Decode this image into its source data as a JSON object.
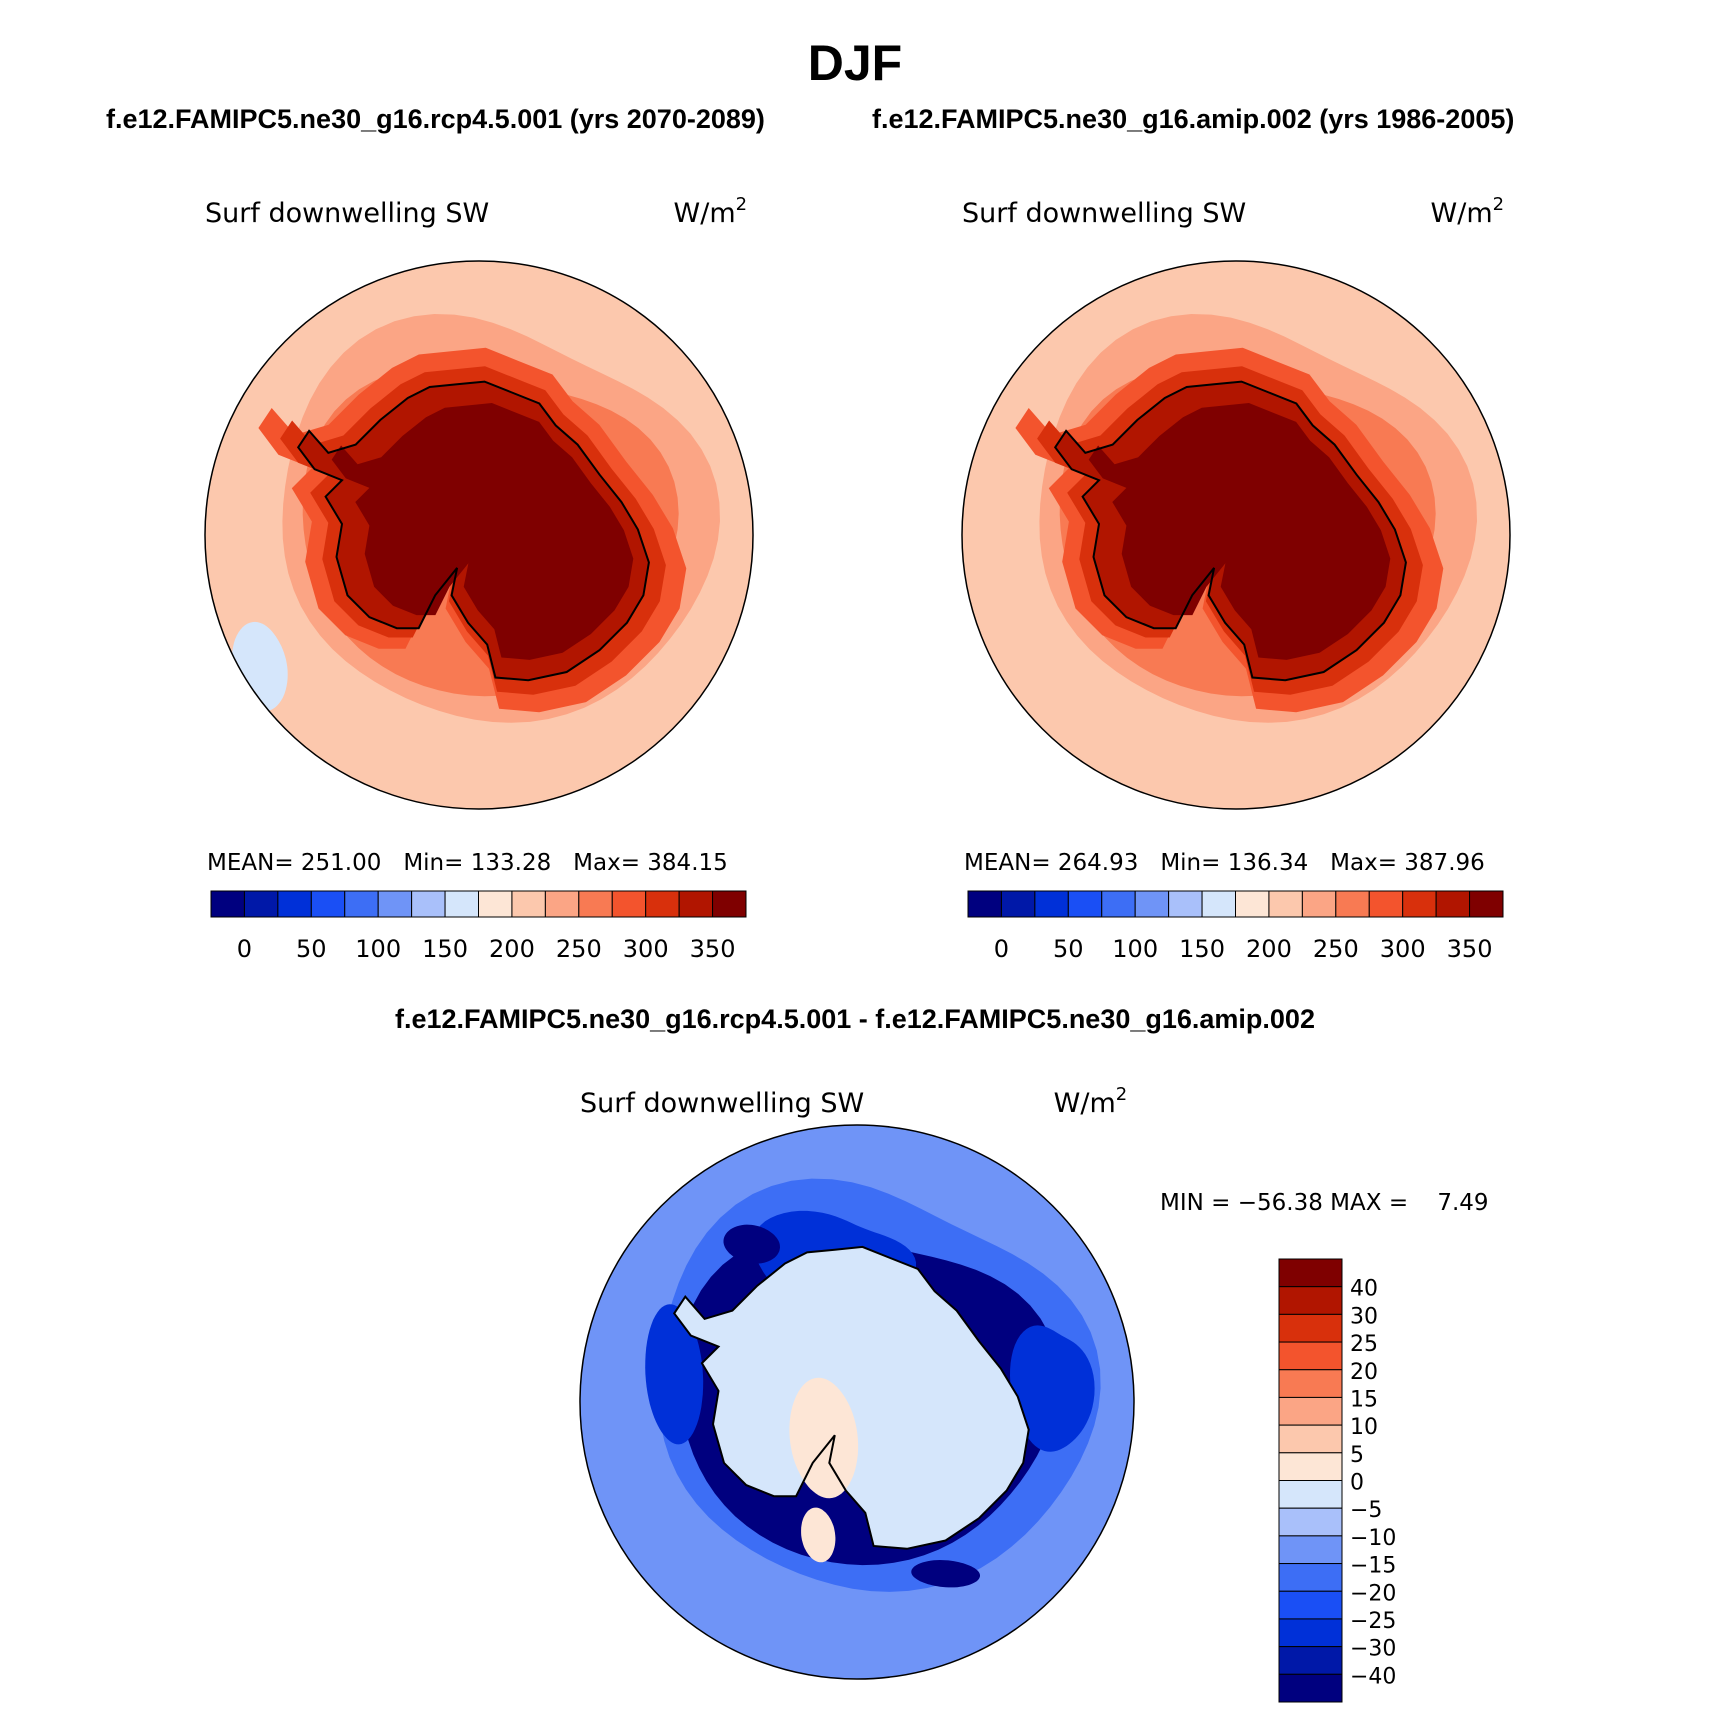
{
  "figure": {
    "title": "DJF",
    "subtitle_left": "f.e12.FAMIPC5.ne30_g16.rcp4.5.001 (yrs 2070-2089)",
    "subtitle_right": "f.e12.FAMIPC5.ne30_g16.amip.002 (yrs 1986-2005)",
    "diff_title": "f.e12.FAMIPC5.ne30_g16.rcp4.5.001 - f.e12.FAMIPC5.ne30_g16.amip.002"
  },
  "colors": {
    "abs_scale": [
      "#00007f",
      "#0018a8",
      "#0030d8",
      "#1a4ff5",
      "#3d6ef5",
      "#6f94f7",
      "#a9c0fa",
      "#d5e6fb",
      "#fde6d6",
      "#fcc8ad",
      "#fba585",
      "#f87a53",
      "#f3542d",
      "#d8300c",
      "#b11500",
      "#7f0000"
    ],
    "diff_scale": [
      "#00007f",
      "#0018a8",
      "#0030d8",
      "#1a4ff5",
      "#3d6ef5",
      "#6f94f7",
      "#a9c0fa",
      "#d5e6fb",
      "#fde6d6",
      "#fcc8ad",
      "#fba585",
      "#f87a53",
      "#f3542d",
      "#d8300c",
      "#b11500",
      "#7f0000"
    ]
  },
  "chart_data": [
    {
      "type": "heatmap",
      "projection": "south-polar-stereographic",
      "case": "f.e12.FAMIPC5.ne30_g16.rcp4.5.001",
      "years": "2070-2089",
      "variable": "Surf downwelling SW",
      "units_label": "W/m",
      "units_exponent": "2",
      "stats": {
        "mean_label": "MEAN=",
        "mean": "251.00",
        "min_label": "Min=",
        "min": "133.28",
        "max_label": "Max=",
        "max": "384.15"
      },
      "colorbar_ticks": [
        "0",
        "50",
        "100",
        "150",
        "200",
        "250",
        "300",
        "350"
      ],
      "levels": [
        0,
        25,
        50,
        75,
        100,
        125,
        150,
        175,
        200,
        225,
        250,
        275,
        300,
        325,
        350
      ],
      "regions": {
        "ocean_far": 200,
        "ocean_mid": 225,
        "ocean_near": 250,
        "coast_ring": 300,
        "plateau": 375,
        "min_patch": 160
      }
    },
    {
      "type": "heatmap",
      "projection": "south-polar-stereographic",
      "case": "f.e12.FAMIPC5.ne30_g16.amip.002",
      "years": "1986-2005",
      "variable": "Surf downwelling SW",
      "units_label": "W/m",
      "units_exponent": "2",
      "stats": {
        "mean_label": "MEAN=",
        "mean": "264.93",
        "min_label": "Min=",
        "min": "136.34",
        "max_label": "Max=",
        "max": "387.96"
      },
      "colorbar_ticks": [
        "0",
        "50",
        "100",
        "150",
        "200",
        "250",
        "300",
        "350"
      ],
      "levels": [
        0,
        25,
        50,
        75,
        100,
        125,
        150,
        175,
        200,
        225,
        250,
        275,
        300,
        325,
        350
      ],
      "regions": {
        "ocean_far": 200,
        "ocean_mid": 225,
        "ocean_near": 250,
        "coast_ring": 300,
        "plateau": 375
      }
    },
    {
      "type": "heatmap",
      "projection": "south-polar-stereographic",
      "title": "f.e12.FAMIPC5.ne30_g16.rcp4.5.001 - f.e12.FAMIPC5.ne30_g16.amip.002",
      "variable": "Surf downwelling SW",
      "units_label": "W/m",
      "units_exponent": "2",
      "stats": {
        "min_label": "MIN =",
        "min": "−56.38",
        "max_label": "MAX =",
        "max": "7.49"
      },
      "colorbar_ticks": [
        "40",
        "30",
        "25",
        "20",
        "15",
        "10",
        "5",
        "0",
        "−5",
        "−10",
        "−15",
        "−20",
        "−25",
        "−30",
        "−40"
      ],
      "levels": [
        -40,
        -30,
        -25,
        -20,
        -15,
        -10,
        -5,
        0,
        5,
        10,
        15,
        20,
        25,
        30,
        40
      ],
      "regions": {
        "continent": -2.5,
        "ocean_far": -12.5,
        "ocean_mid": -17.5,
        "ring": -27.5,
        "strong_min": -45,
        "positive_patch": 2.5
      }
    }
  ]
}
